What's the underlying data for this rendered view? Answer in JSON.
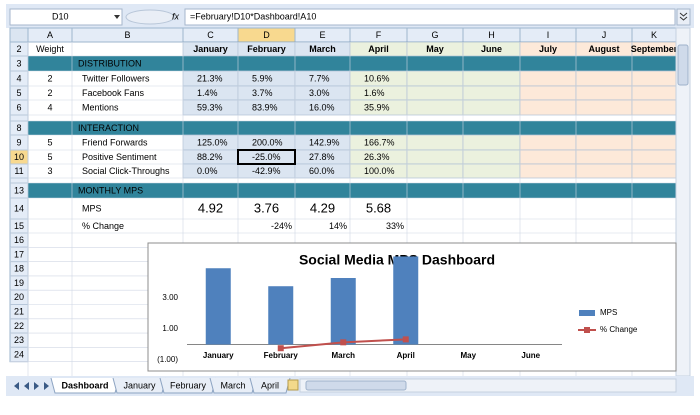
{
  "formula_bar": {
    "name_box": "D10",
    "function_icon": "fx",
    "formula": "=February!D10*Dashboard!A10"
  },
  "columns": [
    "A",
    "B",
    "C",
    "D",
    "E",
    "F",
    "G",
    "H",
    "I",
    "J",
    "K"
  ],
  "rows": [
    2,
    3,
    4,
    5,
    6,
    7,
    8,
    9,
    10,
    11,
    12,
    13,
    14,
    15,
    16,
    17,
    18,
    19,
    20,
    21,
    22,
    23,
    24
  ],
  "cells": {
    "A2": "Weight",
    "C2": "January",
    "D2": "February",
    "E2": "March",
    "F2": "April",
    "G2": "May",
    "H2": "June",
    "I2": "July",
    "J2": "August",
    "K2": "September",
    "B3": "DISTRIBUTION",
    "A4": "2",
    "B4": "Twitter Followers",
    "C4": "21.3%",
    "D4": "5.9%",
    "E4": "7.7%",
    "F4": "10.6%",
    "A5": "2",
    "B5": "Facebook Fans",
    "C5": "1.4%",
    "D5": "3.7%",
    "E5": "3.0%",
    "F5": "1.6%",
    "A6": "4",
    "B6": "Mentions",
    "C6": "59.3%",
    "D6": "83.9%",
    "E6": "16.0%",
    "F6": "35.9%",
    "B8": "INTERACTION",
    "A9": "5",
    "B9": "Friend Forwards",
    "C9": "125.0%",
    "D9": "200.0%",
    "E9": "142.9%",
    "F9": "166.7%",
    "A10": "5",
    "B10": "Positive Sentiment",
    "C10": "88.2%",
    "D10": "-25.0%",
    "E10": "27.8%",
    "F10": "26.3%",
    "A11": "3",
    "B11": "Social Click-Throughs",
    "C11": "0.0%",
    "D11": "-42.9%",
    "E11": "60.0%",
    "F11": "100.0%",
    "B13": "MONTHLY MPS",
    "B14": "MPS",
    "C14": "4.92",
    "D14": "3.76",
    "E14": "4.29",
    "F14": "5.68",
    "B15": "% Change",
    "D15": "-24%",
    "E15": "14%",
    "F15": "33%"
  },
  "chart_data": {
    "type": "combo",
    "title": "Social Media MPS Dashboard",
    "categories": [
      "January",
      "February",
      "March",
      "April",
      "May",
      "June"
    ],
    "series": [
      {
        "name": "MPS",
        "type": "bar",
        "color": "#4f81bd",
        "values": [
          4.92,
          3.76,
          4.29,
          5.68,
          null,
          null
        ]
      },
      {
        "name": "% Change",
        "type": "line",
        "color": "#c0504d",
        "values": [
          null,
          -0.24,
          0.14,
          0.33,
          null,
          null
        ]
      }
    ],
    "ylim": [
      -1,
      6
    ],
    "yticks": [
      {
        "value": -1,
        "label": "(1.00)"
      },
      {
        "value": 1,
        "label": "1.00"
      },
      {
        "value": 3,
        "label": "3.00"
      }
    ],
    "legend": "right"
  },
  "tabs": [
    "Dashboard",
    "January",
    "February",
    "March",
    "April"
  ]
}
